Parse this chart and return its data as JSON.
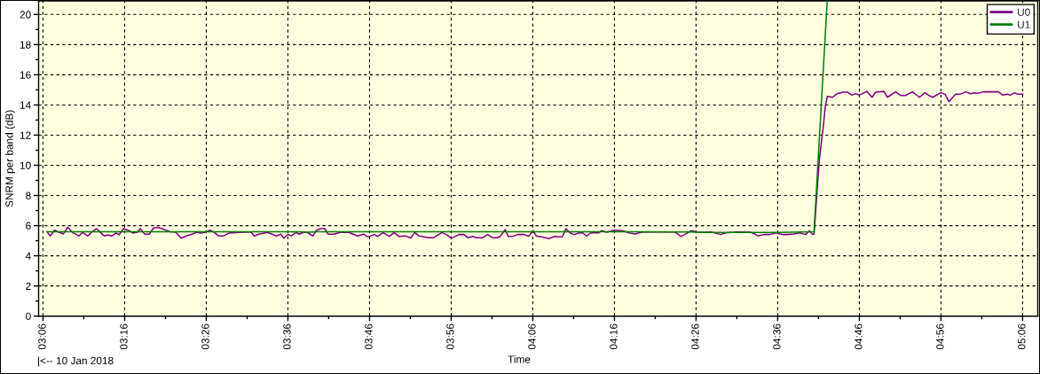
{
  "chart_data": {
    "type": "line",
    "xlabel": "Time",
    "ylabel": "SNRM per band (dB)",
    "annotations": [
      "|<-- 10 Jan 2018"
    ],
    "xlim": [
      3.091,
      5.131
    ],
    "ylim": [
      0,
      20.9
    ],
    "xticks": [
      {
        "value": 3.1,
        "label": "03:06"
      },
      {
        "value": 3.2667,
        "label": "03:16"
      },
      {
        "value": 3.4333,
        "label": "03:26"
      },
      {
        "value": 3.6,
        "label": "03:36"
      },
      {
        "value": 3.7667,
        "label": "03:46"
      },
      {
        "value": 3.9333,
        "label": "03:56"
      },
      {
        "value": 4.1,
        "label": "04:06"
      },
      {
        "value": 4.2667,
        "label": "04:16"
      },
      {
        "value": 4.4333,
        "label": "04:26"
      },
      {
        "value": 4.6,
        "label": "04:36"
      },
      {
        "value": 4.7667,
        "label": "04:46"
      },
      {
        "value": 4.9333,
        "label": "04:56"
      },
      {
        "value": 5.1,
        "label": "05:06"
      },
      {
        "value": 3.1833,
        "label": null
      },
      {
        "value": 3.35,
        "label": null
      },
      {
        "value": 3.5167,
        "label": null
      },
      {
        "value": 3.6833,
        "label": null
      },
      {
        "value": 3.85,
        "label": null
      },
      {
        "value": 4.0167,
        "label": null
      },
      {
        "value": 4.1833,
        "label": null
      },
      {
        "value": 4.35,
        "label": null
      },
      {
        "value": 4.5167,
        "label": null
      },
      {
        "value": 4.6833,
        "label": null
      },
      {
        "value": 4.85,
        "label": null
      },
      {
        "value": 5.0167,
        "label": null
      }
    ],
    "yticks": [
      0,
      2,
      4,
      6,
      8,
      10,
      12,
      14,
      16,
      18,
      20,
      {
        "value": 1,
        "label": null
      },
      {
        "value": 3,
        "label": null
      },
      {
        "value": 5,
        "label": null
      },
      {
        "value": 7,
        "label": null
      },
      {
        "value": 9,
        "label": null
      },
      {
        "value": 11,
        "label": null
      },
      {
        "value": 13,
        "label": null
      },
      {
        "value": 15,
        "label": null
      },
      {
        "value": 17,
        "label": null
      },
      {
        "value": 19,
        "label": null
      }
    ],
    "grid": true,
    "legend": "top right",
    "line_style": "solid",
    "series": [
      {
        "name": "U0",
        "color": "#800080",
        "x": [
          3.1083,
          3.1145,
          3.1236,
          3.1326,
          3.1417,
          3.1507,
          3.1598,
          3.1736,
          3.1808,
          3.1917,
          3.199,
          3.2093,
          3.2171,
          3.225,
          3.2323,
          3.2401,
          3.2492,
          3.2551,
          3.2642,
          3.2733,
          3.2836,
          3.2926,
          3.2986,
          3.3077,
          3.3167,
          3.3258,
          3.3349,
          3.3439,
          3.3592,
          3.3711,
          3.382,
          3.3923,
          3.4045,
          3.4135,
          3.4226,
          3.4316,
          3.4407,
          3.4498,
          3.4588,
          3.4679,
          3.4798,
          3.501,
          3.5246,
          3.5313,
          3.5404,
          3.5585,
          3.5676,
          3.5766,
          3.5857,
          3.5917,
          3.6007,
          3.6067,
          3.6158,
          3.6237,
          3.631,
          3.64,
          3.6509,
          3.6582,
          3.6672,
          3.675,
          3.6823,
          3.6944,
          3.7064,
          3.7245,
          3.7426,
          3.7548,
          3.7638,
          3.7765,
          3.7832,
          3.7943,
          3.8071,
          3.8169,
          3.8265,
          3.8396,
          3.8506,
          3.859,
          3.8673,
          3.8881,
          3.8979,
          3.9141,
          3.9237,
          3.9335,
          3.9496,
          3.9594,
          3.967,
          3.9775,
          3.9851,
          3.9982,
          4.0078,
          4.0175,
          4.0273,
          4.0337,
          4.0435,
          4.05,
          4.0596,
          4.0694,
          4.0822,
          4.0918,
          4.1004,
          4.1069,
          4.1198,
          4.1328,
          4.1437,
          4.16,
          4.1678,
          4.1761,
          4.1845,
          4.1955,
          4.202,
          4.2098,
          4.2182,
          4.2343,
          4.2408,
          4.2506,
          4.2667,
          4.2829,
          4.2959,
          4.3088,
          4.3218,
          4.3476,
          4.38,
          4.3898,
          4.4026,
          4.4124,
          4.424,
          4.4351,
          4.4512,
          4.4641,
          4.4835,
          4.4933,
          4.5159,
          4.5419,
          4.5484,
          4.56,
          4.5711,
          4.5839,
          4.5968,
          4.6098,
          4.6195,
          4.6325,
          4.6454,
          4.6572,
          4.6648,
          4.6713,
          4.6742,
          4.6778,
          4.6851,
          4.693,
          4.6972,
          4.7013,
          4.7122,
          4.7213,
          4.7334,
          4.7425,
          4.7516,
          4.7588,
          4.7666,
          4.7818,
          4.7927,
          4.7999,
          4.8168,
          4.824,
          4.8409,
          4.8512,
          4.8603,
          4.8753,
          4.8893,
          4.9007,
          4.9087,
          4.9165,
          4.9328,
          4.9418,
          4.9496,
          4.963,
          4.9721,
          4.984,
          4.9931,
          5.0021,
          5.0083,
          5.0203,
          5.0384,
          5.0505,
          5.0596,
          5.0686,
          5.0746,
          5.0837,
          5.0899,
          5.1008
        ],
        "values": [
          5.6,
          5.31,
          5.7,
          5.56,
          5.45,
          5.9,
          5.56,
          5.31,
          5.56,
          5.31,
          5.56,
          5.8,
          5.56,
          5.31,
          5.39,
          5.31,
          5.51,
          5.39,
          5.8,
          5.7,
          5.51,
          5.56,
          5.8,
          5.43,
          5.43,
          5.84,
          5.88,
          5.78,
          5.6,
          5.56,
          5.17,
          5.31,
          5.43,
          5.56,
          5.51,
          5.56,
          5.7,
          5.56,
          5.31,
          5.31,
          5.51,
          5.55,
          5.58,
          5.31,
          5.43,
          5.55,
          5.43,
          5.31,
          5.43,
          5.17,
          5.43,
          5.31,
          5.55,
          5.43,
          5.55,
          5.55,
          5.31,
          5.7,
          5.8,
          5.8,
          5.43,
          5.43,
          5.55,
          5.55,
          5.31,
          5.43,
          5.25,
          5.41,
          5.28,
          5.54,
          5.28,
          5.54,
          5.28,
          5.32,
          5.18,
          5.54,
          5.32,
          5.2,
          5.2,
          5.54,
          5.41,
          5.16,
          5.41,
          5.41,
          5.2,
          5.28,
          5.2,
          5.2,
          5.41,
          5.2,
          5.2,
          5.3,
          5.73,
          5.28,
          5.3,
          5.41,
          5.41,
          5.3,
          5.67,
          5.32,
          5.24,
          5.14,
          5.28,
          5.24,
          5.79,
          5.52,
          5.41,
          5.52,
          5.52,
          5.3,
          5.52,
          5.52,
          5.67,
          5.56,
          5.69,
          5.67,
          5.52,
          5.45,
          5.56,
          5.58,
          5.58,
          5.58,
          5.28,
          5.45,
          5.67,
          5.58,
          5.56,
          5.58,
          5.41,
          5.52,
          5.58,
          5.58,
          5.52,
          5.32,
          5.41,
          5.41,
          5.52,
          5.41,
          5.41,
          5.45,
          5.52,
          5.41,
          5.67,
          5.41,
          5.43,
          7.06,
          10.4,
          12.55,
          13.9,
          14.57,
          14.51,
          14.75,
          14.85,
          14.85,
          14.65,
          14.75,
          14.65,
          14.9,
          14.51,
          14.85,
          14.9,
          14.51,
          14.87,
          14.63,
          14.63,
          14.87,
          14.51,
          14.81,
          14.63,
          14.51,
          14.81,
          14.71,
          14.22,
          14.71,
          14.71,
          14.87,
          14.75,
          14.81,
          14.77,
          14.87,
          14.87,
          14.87,
          14.65,
          14.71,
          14.65,
          14.81,
          14.71,
          14.71
        ]
      },
      {
        "name": "U1",
        "color": "#008000",
        "x": [
          3.1083,
          3.3,
          3.5,
          3.62,
          3.64,
          3.66,
          3.9,
          4.1,
          4.3,
          4.42,
          4.45,
          4.6,
          4.6742,
          4.7011
        ],
        "values": [
          5.6,
          5.6,
          5.6,
          5.6,
          5.56,
          5.6,
          5.6,
          5.6,
          5.6,
          5.58,
          5.55,
          5.55,
          5.6,
          20.9
        ]
      }
    ]
  }
}
